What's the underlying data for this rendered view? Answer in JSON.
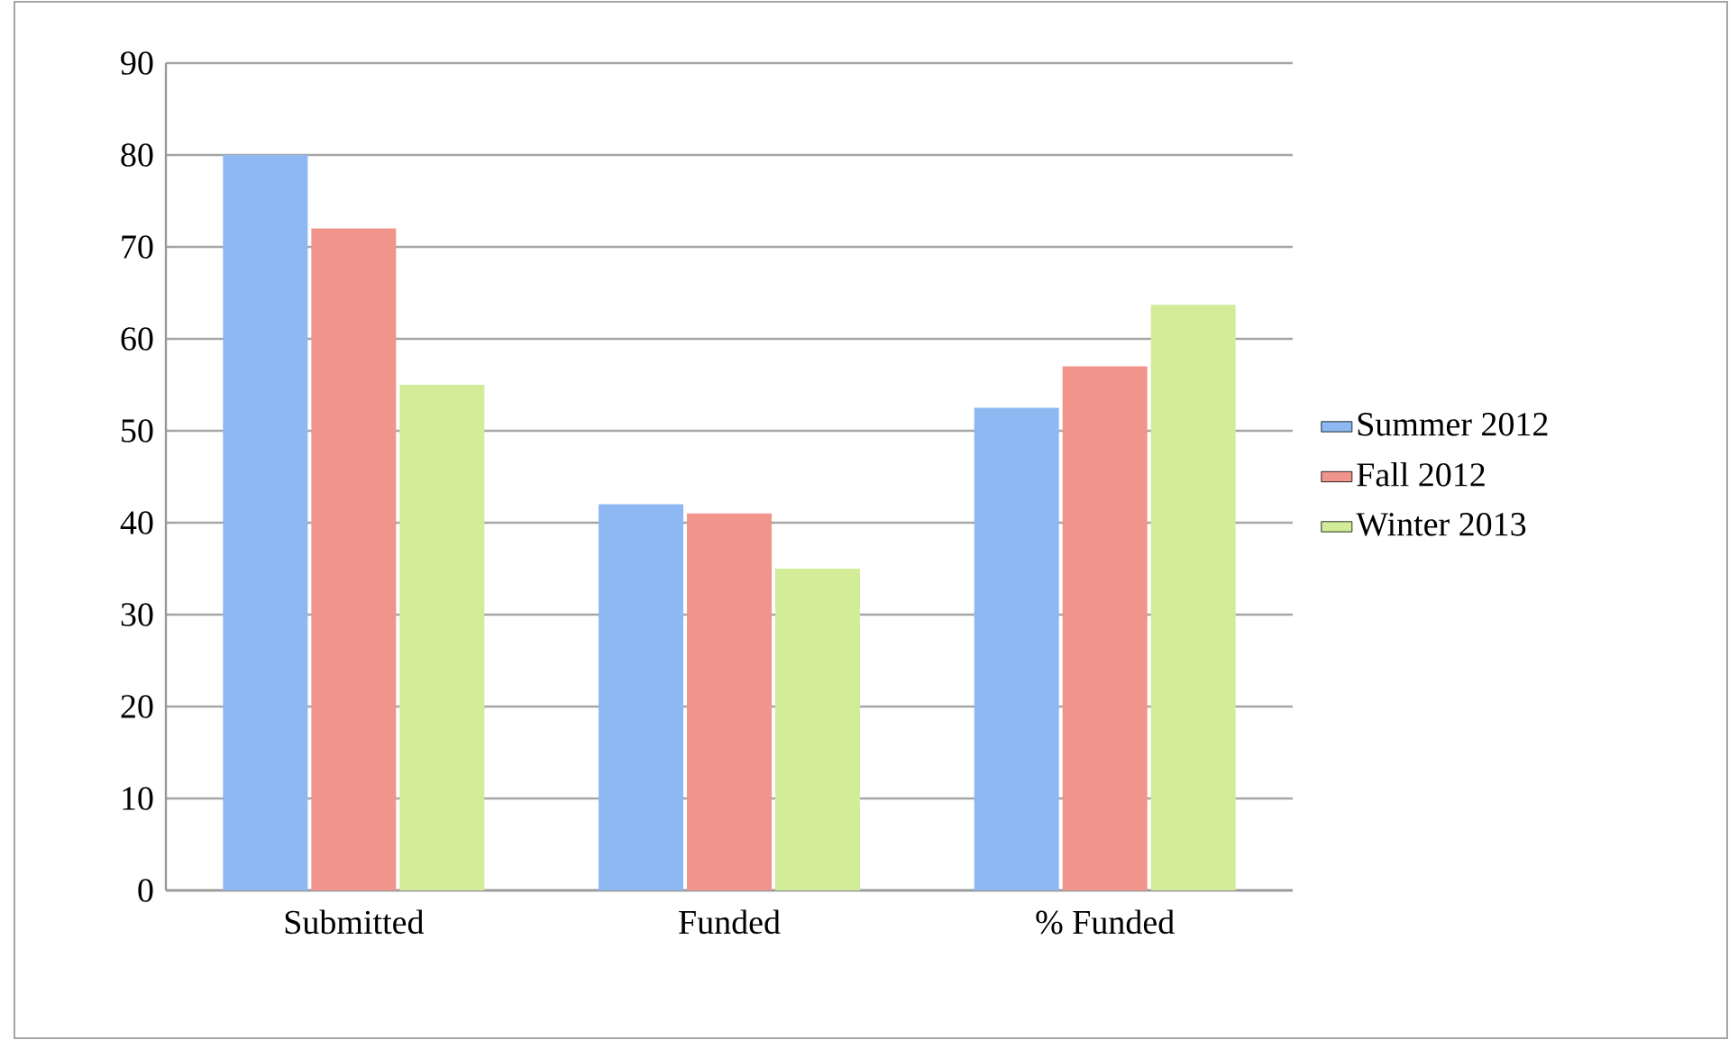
{
  "chart_data": {
    "type": "bar",
    "categories": [
      "Submitted",
      "Funded",
      "% Funded"
    ],
    "series": [
      {
        "name": "Summer 2012",
        "color": "#8db8f2",
        "values": [
          80,
          42,
          52.5
        ]
      },
      {
        "name": "Fall 2012",
        "color": "#f0948c",
        "values": [
          72,
          41,
          57
        ]
      },
      {
        "name": "Winter 2013",
        "color": "#d2ec98",
        "values": [
          55,
          35,
          63.7
        ]
      }
    ],
    "ylim": [
      0,
      90
    ],
    "yticks": [
      0,
      10,
      20,
      30,
      40,
      50,
      60,
      70,
      80,
      90
    ],
    "grid": "y",
    "legend": "right"
  }
}
